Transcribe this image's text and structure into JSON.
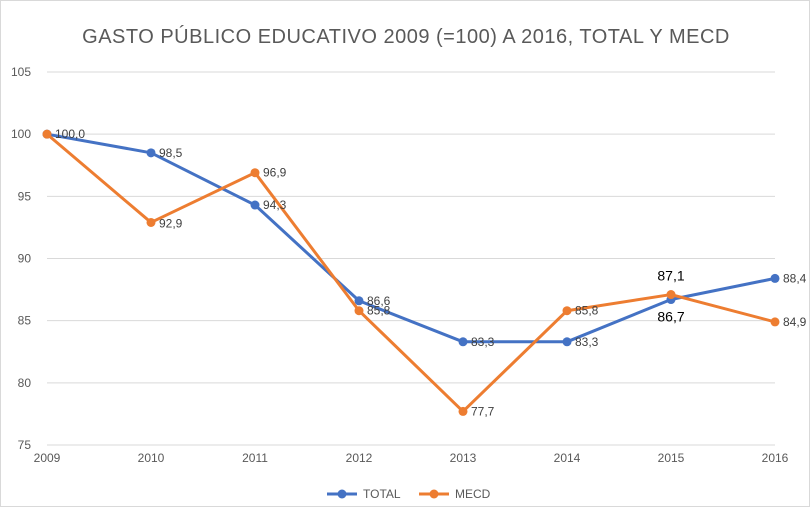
{
  "chart_data": {
    "type": "line",
    "title": "GASTO PÚBLICO EDUCATIVO 2009 (=100) A 2016, TOTAL Y MECD",
    "xlabel": "",
    "ylabel": "",
    "categories": [
      "2009",
      "2010",
      "2011",
      "2012",
      "2013",
      "2014",
      "2015",
      "2016"
    ],
    "ylim": [
      75,
      105
    ],
    "yticks": [
      "75",
      "80",
      "85",
      "90",
      "95",
      "100",
      "105"
    ],
    "grid": true,
    "legend_position": "bottom",
    "series": [
      {
        "name": "TOTAL",
        "color": "#4472c4",
        "values": [
          100.0,
          98.5,
          94.3,
          86.6,
          83.3,
          83.3,
          86.7,
          88.4
        ],
        "labels": [
          "100,0",
          "98,5",
          "94,3",
          "86,6",
          "83,3",
          "83,3",
          "86,7",
          "88,4"
        ]
      },
      {
        "name": "MECD",
        "color": "#ed7d31",
        "values": [
          100.0,
          92.9,
          96.9,
          85.8,
          77.7,
          85.8,
          87.1,
          84.9
        ],
        "labels": [
          "",
          "92,9",
          "96,9",
          "85,8",
          "77,7",
          "85,8",
          "87,1",
          "84,9"
        ]
      }
    ]
  }
}
